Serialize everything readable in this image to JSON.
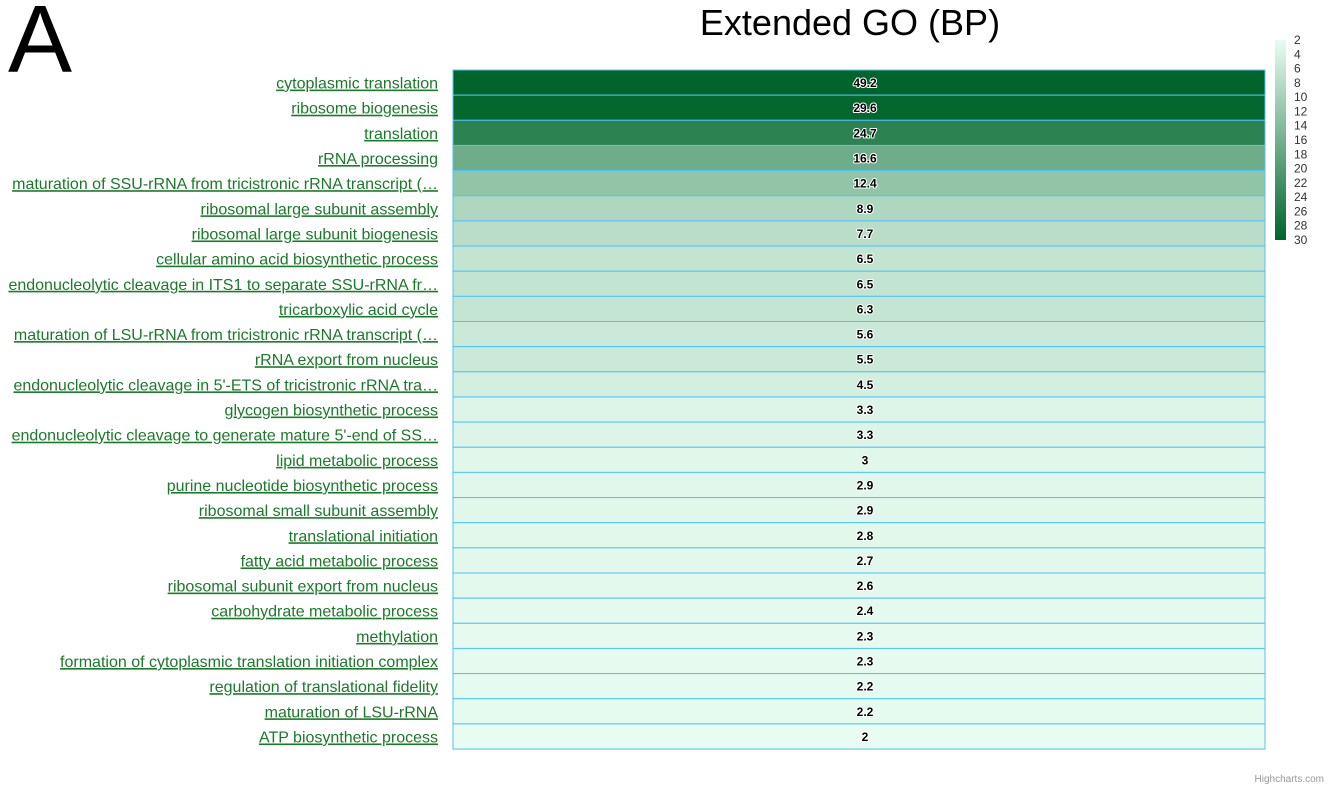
{
  "panel_label": "A",
  "credits": "Highcharts.com",
  "colors": {
    "min": "#e8fcf1",
    "max": "#00652b",
    "cell_border": "#4fc3f7",
    "label": "#1b7a2a"
  },
  "chart_data": {
    "type": "heatmap",
    "title": "Extended GO (BP)",
    "categories": [
      "cytoplasmic translation",
      "ribosome biogenesis",
      "translation",
      "rRNA processing",
      "maturation of SSU-rRNA from tricistronic rRNA transcript (…",
      "ribosomal large subunit assembly",
      "ribosomal large subunit biogenesis",
      "cellular amino acid biosynthetic process",
      "endonucleolytic cleavage in ITS1 to separate SSU-rRNA fr…",
      "tricarboxylic acid cycle",
      "maturation of LSU-rRNA from tricistronic rRNA transcript (…",
      "rRNA export from nucleus",
      "endonucleolytic cleavage in 5'-ETS of tricistronic rRNA tra…",
      "glycogen biosynthetic process",
      "endonucleolytic cleavage to generate mature 5'-end of SS…",
      "lipid metabolic process",
      "purine nucleotide biosynthetic process",
      "ribosomal small subunit assembly",
      "translational initiation",
      "fatty acid metabolic process",
      "ribosomal subunit export from nucleus",
      "carbohydrate metabolic process",
      "methylation",
      "formation of cytoplasmic translation initiation complex",
      "regulation of translational fidelity",
      "maturation of LSU-rRNA",
      "ATP biosynthetic process"
    ],
    "values": [
      49.2,
      29.6,
      24.7,
      16.6,
      12.4,
      8.9,
      7.7,
      6.5,
      6.5,
      6.3,
      5.6,
      5.5,
      4.5,
      3.3,
      3.3,
      3,
      2.9,
      2.9,
      2.8,
      2.7,
      2.6,
      2.4,
      2.3,
      2.3,
      2.2,
      2.2,
      2
    ],
    "color_axis": {
      "min": 2,
      "max": 30,
      "ticks": [
        2,
        4,
        6,
        8,
        10,
        12,
        14,
        16,
        18,
        20,
        22,
        24,
        26,
        28,
        30
      ]
    }
  }
}
